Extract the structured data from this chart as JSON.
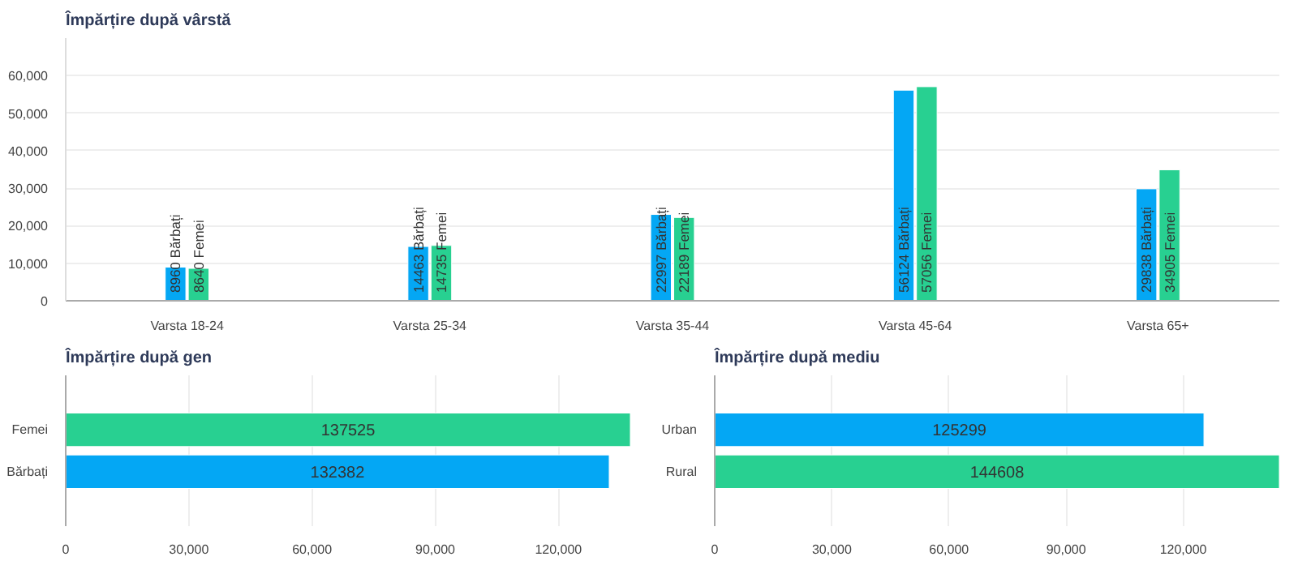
{
  "chart_data": [
    {
      "type": "bar",
      "title": "Împărțire după vârstă",
      "categories": [
        "Varsta 18-24",
        "Varsta 25-34",
        "Varsta 35-44",
        "Varsta 45-64",
        "Varsta 65+"
      ],
      "series": [
        {
          "color": "#04a7f4",
          "values": [
            8960,
            14463,
            22997,
            56124,
            29838
          ],
          "value_labels": [
            "8960 Bărbați",
            "14463 Bărbați",
            "22997 Bărbați",
            "56124 Bărbați",
            "29838 Bărbați"
          ]
        },
        {
          "color": "#28d091",
          "values": [
            8640,
            14735,
            22189,
            57056,
            34905
          ],
          "value_labels": [
            "8640 Femei",
            "14735 Femei",
            "22189 Femei",
            "57056 Femei",
            "34905 Femei"
          ]
        }
      ],
      "ylim": [
        0,
        70000
      ],
      "yticks": [
        0,
        {
          "value": 10000,
          "label": "10,000"
        },
        {
          "value": 20000,
          "label": "20,000"
        },
        {
          "value": 30000,
          "label": "30,000"
        },
        {
          "value": 40000,
          "label": "40,000"
        },
        {
          "value": 50000,
          "label": "50,000"
        },
        {
          "value": 60000,
          "label": "60,000"
        }
      ],
      "grid": "y"
    },
    {
      "type": "bar",
      "orientation": "horizontal",
      "title": "Împărțire după gen",
      "categories": [
        "Femei",
        "Bărbați"
      ],
      "values": [
        137525,
        132382
      ],
      "colors": [
        "#28d091",
        "#04a7f4"
      ],
      "data_labels": true,
      "xlim": [
        0,
        137525
      ],
      "xticks": [
        0,
        {
          "value": 30000,
          "label": "30,000"
        },
        {
          "value": 60000,
          "label": "60,000"
        },
        {
          "value": 90000,
          "label": "90,000"
        },
        {
          "value": 120000,
          "label": "120,000"
        }
      ],
      "grid": "x"
    },
    {
      "type": "bar",
      "orientation": "horizontal",
      "title": "Împărțire după mediu",
      "categories": [
        "Urban",
        "Rural"
      ],
      "values": [
        125299,
        144608
      ],
      "colors": [
        "#04a7f4",
        "#28d091"
      ],
      "data_labels": true,
      "xlim": [
        0,
        144608
      ],
      "xticks": [
        0,
        {
          "value": 30000,
          "label": "30,000"
        },
        {
          "value": 60000,
          "label": "60,000"
        },
        {
          "value": 90000,
          "label": "90,000"
        },
        {
          "value": 120000,
          "label": "120,000"
        }
      ],
      "grid": "x"
    }
  ]
}
